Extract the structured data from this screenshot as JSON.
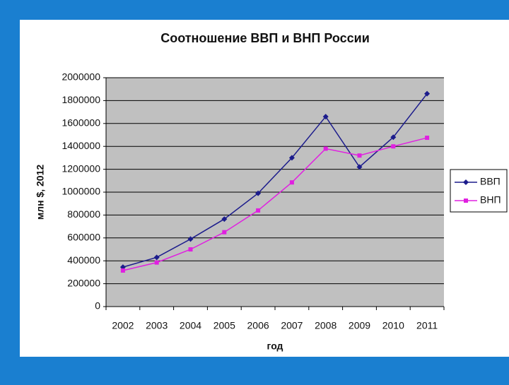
{
  "chart_data": {
    "type": "line",
    "title": "Соотношение ВВП и ВНП России",
    "y_label": "млн $, 2012",
    "x_label": "год",
    "categories": [
      "2002",
      "2003",
      "2004",
      "2005",
      "2006",
      "2007",
      "2008",
      "2009",
      "2010",
      "2011"
    ],
    "series": [
      {
        "name": "ВВП",
        "color": "#1c1c8c",
        "marker": "diamond",
        "values": [
          345000,
          430000,
          590000,
          765000,
          990000,
          1300000,
          1660000,
          1220000,
          1480000,
          1860000
        ]
      },
      {
        "name": "ВНП",
        "color": "#e020e0",
        "marker": "square",
        "values": [
          315000,
          385000,
          500000,
          650000,
          840000,
          1085000,
          1380000,
          1320000,
          1400000,
          1475000
        ]
      }
    ],
    "ylim": [
      0,
      2000000
    ],
    "yticks": [
      0,
      200000,
      400000,
      600000,
      800000,
      1000000,
      1200000,
      1400000,
      1600000,
      1800000,
      2000000
    ],
    "grid": true,
    "legend": "right"
  }
}
